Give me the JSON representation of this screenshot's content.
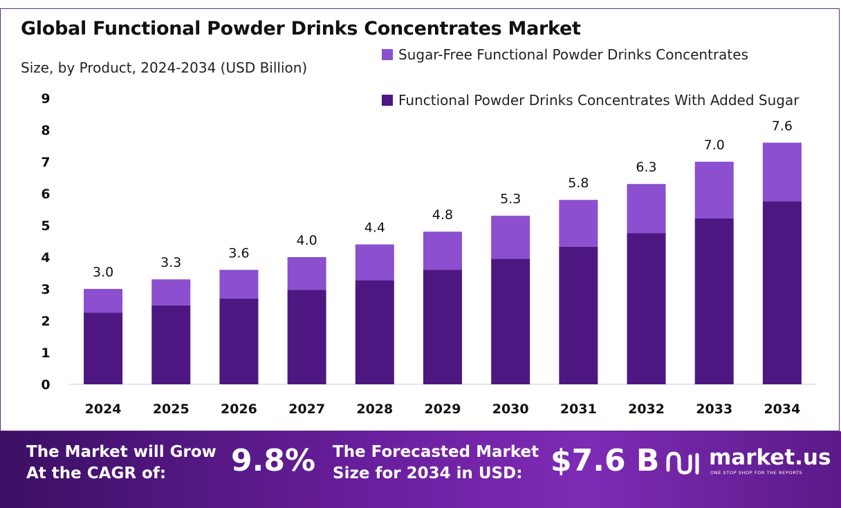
{
  "header": {
    "title": "Global Functional Powder Drinks Concentrates Market",
    "subtitle": "Size, by Product, 2024-2034 (USD Billion)"
  },
  "colors": {
    "sugar_free": "#8b4fd0",
    "added_sugar": "#4e1680",
    "brand_accent": "#6a1f9e"
  },
  "chart_data": {
    "type": "bar",
    "stacked": true,
    "categories": [
      "2024",
      "2025",
      "2026",
      "2027",
      "2028",
      "2029",
      "2030",
      "2031",
      "2032",
      "2033",
      "2034"
    ],
    "series": [
      {
        "name": "Functional Powder Drinks Concentrates With Added Sugar",
        "values": [
          2.25,
          2.48,
          2.7,
          2.97,
          3.27,
          3.6,
          3.95,
          4.33,
          4.75,
          5.22,
          5.75
        ]
      },
      {
        "name": "Sugar-Free Functional Powder Drinks Concentrates",
        "values": [
          0.75,
          0.82,
          0.9,
          1.03,
          1.13,
          1.2,
          1.35,
          1.47,
          1.55,
          1.78,
          1.85
        ]
      }
    ],
    "totals": [
      "3.0",
      "3.3",
      "3.6",
      "4.0",
      "4.4",
      "4.8",
      "5.3",
      "5.8",
      "6.3",
      "7.0",
      "7.6"
    ],
    "yticks": [
      "0",
      "1",
      "2",
      "3",
      "4",
      "5",
      "6",
      "7",
      "8",
      "9"
    ],
    "ylim": [
      0,
      9
    ],
    "grid": false,
    "legend_position": "top-right"
  },
  "banner": {
    "cagr_text_line1": "The Market will Grow",
    "cagr_text_line2": "At the CAGR of:",
    "cagr_value": "9.8%",
    "forecast_text_line1": "The Forecasted Market",
    "forecast_text_line2": "Size for 2034 in USD:",
    "forecast_value": "$7.6 B",
    "brand_name": "market.us",
    "brand_tagline": "ONE STOP SHOP FOR THE REPORTS",
    "brand_icon": "market-us-logo-icon"
  }
}
